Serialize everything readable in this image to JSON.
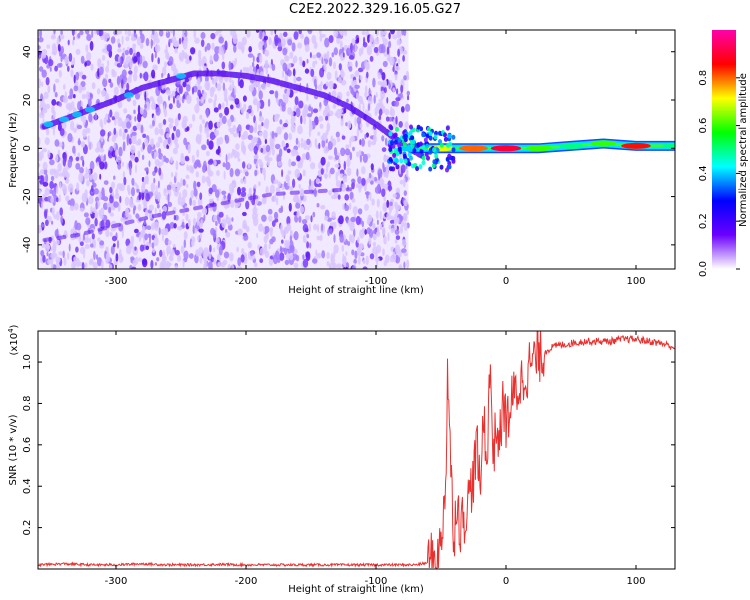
{
  "figure": {
    "title": "C2E2.2022.329.16.05.G27"
  },
  "chart_data": [
    {
      "type": "heatmap",
      "title": "",
      "xlabel": "Height of straight line (km)",
      "ylabel": "Frequency (Hz)",
      "xlim": [
        -360,
        130
      ],
      "ylim": [
        -50,
        49
      ],
      "xticks": [
        -300,
        -200,
        -100,
        0,
        100
      ],
      "yticks": [
        -40,
        -20,
        0,
        20,
        40
      ],
      "colorbar": {
        "label": "Normalized spectral amplitude",
        "range": [
          0.0,
          1.0
        ],
        "ticks": [
          0.0,
          0.2,
          0.4,
          0.6,
          0.8
        ],
        "tick_labels": [
          "0.0",
          "0.2",
          "0.4",
          "0.6",
          "0.8"
        ],
        "colormap": [
          "#ffffff",
          "#6a00ff",
          "#0000ff",
          "#00ffff",
          "#00ff00",
          "#ffff00",
          "#ff0000",
          "#ff00aa"
        ]
      },
      "noise_region_x": [
        -360,
        -75
      ],
      "features": [
        {
          "name": "",
          "kind": "arc",
          "x": [
            -355,
            -340,
            -320,
            -300,
            -280,
            -260,
            -240,
            -220,
            -200,
            -180,
            -160,
            -140,
            -120,
            -100,
            -85,
            -75,
            -65
          ],
          "y": [
            9,
            12,
            16,
            20,
            25,
            28,
            31,
            31,
            30,
            28,
            25,
            22,
            17,
            10,
            4,
            0,
            -3
          ]
        },
        {
          "name": "",
          "kind": "arc",
          "x": [
            -355,
            -330,
            -300,
            -270,
            -240,
            -210,
            -180,
            -150,
            -120
          ],
          "y": [
            -38,
            -36,
            -32,
            -28,
            -25,
            -22,
            -19,
            -18,
            -17
          ]
        },
        {
          "name": "",
          "kind": "line",
          "x": [
            -75,
            -50,
            -25,
            0,
            25,
            50,
            75,
            100,
            130
          ],
          "y": [
            0,
            0,
            0,
            0,
            0,
            1,
            2,
            1,
            1
          ],
          "amplitude": [
            0.4,
            0.7,
            0.8,
            0.9,
            0.6,
            0.5,
            0.6,
            0.85,
            0.5
          ]
        }
      ]
    },
    {
      "type": "line",
      "title": "",
      "xlabel": "Height of straight line (km)",
      "ylabel": "SNR (10 * v/v)",
      "y_multiplier_label": "(x10",
      "y_multiplier_exp": "4",
      "y_multiplier_close": ")",
      "xlim": [
        -360,
        130
      ],
      "ylim": [
        0,
        1.15
      ],
      "xticks": [
        -300,
        -200,
        -100,
        0,
        100
      ],
      "yticks": [
        0.2,
        0.4,
        0.6,
        0.8,
        1.0
      ],
      "ytick_labels": [
        "0.2",
        "0.4",
        "0.6",
        "0.8",
        "1.0"
      ],
      "color": "#e8312f",
      "series": [
        {
          "name": "",
          "x": [
            -360,
            -340,
            -320,
            -300,
            -280,
            -260,
            -240,
            -220,
            -200,
            -180,
            -160,
            -140,
            -120,
            -100,
            -80,
            -70,
            -60,
            -55,
            -50,
            -48,
            -46,
            -45,
            -44,
            -42,
            -40,
            -38,
            -35,
            -30,
            -25,
            -22,
            -20,
            -17,
            -15,
            -12,
            -10,
            -7,
            -5,
            -2,
            0,
            5,
            10,
            15,
            20,
            25,
            30,
            35,
            40,
            50,
            60,
            70,
            80,
            90,
            100,
            110,
            120,
            130
          ],
          "y": [
            0.02,
            0.025,
            0.02,
            0.02,
            0.025,
            0.02,
            0.02,
            0.022,
            0.02,
            0.02,
            0.02,
            0.02,
            0.02,
            0.02,
            0.02,
            0.02,
            0.03,
            0.05,
            0.1,
            0.3,
            0.5,
            0.98,
            0.8,
            0.4,
            0.15,
            0.35,
            0.2,
            0.3,
            0.45,
            0.6,
            0.35,
            0.78,
            0.5,
            1.0,
            0.55,
            0.7,
            0.6,
            0.82,
            0.7,
            0.82,
            0.88,
            0.95,
            1.0,
            1.03,
            1.05,
            1.07,
            1.08,
            1.09,
            1.1,
            1.1,
            1.1,
            1.11,
            1.11,
            1.1,
            1.09,
            1.07
          ]
        }
      ]
    }
  ]
}
